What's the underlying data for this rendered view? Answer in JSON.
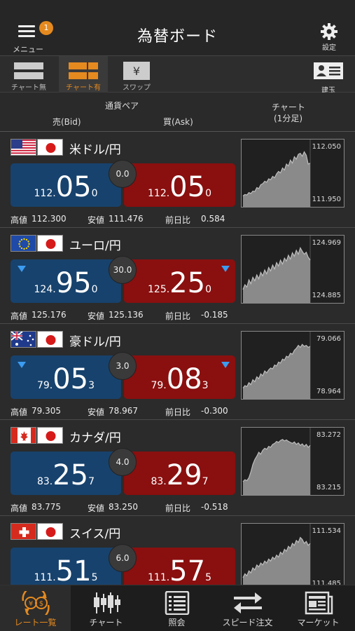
{
  "header": {
    "menu_label": "メニュー",
    "menu_badge": "1",
    "title": "為替ボード",
    "settings_label": "設定"
  },
  "view_modes": [
    {
      "label": "チャート無",
      "icon": "no-chart-list-icon",
      "active": false
    },
    {
      "label": "チャート有",
      "icon": "chart-grid-icon",
      "active": true
    },
    {
      "label": "スワップ",
      "icon": "yen-icon",
      "active": false
    }
  ],
  "position_label": "建玉",
  "columns": {
    "pair": "通貨ペア",
    "bid": "売(Bid)",
    "ask": "買(Ask)",
    "chart": "チャート",
    "chart_interval": "(1分足)"
  },
  "stat_labels": {
    "high": "高値",
    "low": "安値",
    "change": "前日比"
  },
  "colors": {
    "bid": "#17426d",
    "ask": "#8a0f0f",
    "accent": "#e58a1f",
    "down_arrow": "#3b9cf0"
  },
  "pairs": [
    {
      "name": "米ドル/円",
      "flags": [
        "us",
        "jp"
      ],
      "bid": {
        "pre": "112.",
        "big": "05",
        "small": "0"
      },
      "ask": {
        "pre": "112.",
        "big": "05",
        "small": "0"
      },
      "spread": "0.0",
      "bid_arrow": false,
      "ask_arrow": false,
      "high": "112.300",
      "low": "111.476",
      "change": "0.584",
      "chart_hi": "112.050",
      "chart_lo": "111.950",
      "series": [
        0.05,
        0.08,
        0.07,
        0.12,
        0.1,
        0.15,
        0.14,
        0.22,
        0.2,
        0.28,
        0.3,
        0.35,
        0.33,
        0.4,
        0.38,
        0.45,
        0.42,
        0.5,
        0.55,
        0.52,
        0.62,
        0.58,
        0.7,
        0.66,
        0.78,
        0.72,
        0.85,
        0.8,
        0.9,
        0.92,
        0.86,
        0.95,
        0.88,
        0.7,
        0.72
      ]
    },
    {
      "name": "ユーロ/円",
      "flags": [
        "eu",
        "jp"
      ],
      "bid": {
        "pre": "124.",
        "big": "95",
        "small": "0"
      },
      "ask": {
        "pre": "125.",
        "big": "25",
        "small": "0"
      },
      "spread": "30.0",
      "bid_arrow": true,
      "ask_arrow": true,
      "high": "125.176",
      "low": "125.136",
      "change": "-0.185",
      "chart_hi": "124.969",
      "chart_lo": "124.885",
      "series": [
        0.1,
        0.2,
        0.15,
        0.3,
        0.22,
        0.35,
        0.28,
        0.4,
        0.32,
        0.45,
        0.38,
        0.5,
        0.42,
        0.55,
        0.48,
        0.6,
        0.52,
        0.65,
        0.58,
        0.7,
        0.62,
        0.74,
        0.68,
        0.8,
        0.72,
        0.85,
        0.78,
        0.9,
        0.82,
        0.95,
        0.88,
        0.82,
        0.86,
        0.76,
        0.7
      ]
    },
    {
      "name": "豪ドル/円",
      "flags": [
        "au",
        "jp"
      ],
      "bid": {
        "pre": "79.",
        "big": "05",
        "small": "3"
      },
      "ask": {
        "pre": "79.",
        "big": "08",
        "small": "3"
      },
      "spread": "3.0",
      "bid_arrow": true,
      "ask_arrow": true,
      "high": "79.305",
      "low": "78.967",
      "change": "-0.300",
      "chart_hi": "79.066",
      "chart_lo": "78.964",
      "series": [
        0.05,
        0.1,
        0.08,
        0.16,
        0.12,
        0.22,
        0.18,
        0.28,
        0.24,
        0.34,
        0.3,
        0.4,
        0.36,
        0.42,
        0.46,
        0.44,
        0.52,
        0.5,
        0.58,
        0.56,
        0.64,
        0.62,
        0.7,
        0.68,
        0.76,
        0.74,
        0.82,
        0.86,
        0.92,
        0.88,
        0.94,
        0.9,
        0.92,
        0.88,
        0.9
      ]
    },
    {
      "name": "カナダ/円",
      "flags": [
        "ca",
        "jp"
      ],
      "bid": {
        "pre": "83.",
        "big": "25",
        "small": "7"
      },
      "ask": {
        "pre": "83.",
        "big": "29",
        "small": "7"
      },
      "spread": "4.0",
      "bid_arrow": false,
      "ask_arrow": false,
      "high": "83.775",
      "low": "83.250",
      "change": "-0.518",
      "chart_hi": "83.272",
      "chart_lo": "83.215",
      "series": [
        0.1,
        0.14,
        0.12,
        0.18,
        0.3,
        0.45,
        0.55,
        0.62,
        0.7,
        0.66,
        0.74,
        0.78,
        0.76,
        0.82,
        0.8,
        0.86,
        0.88,
        0.92,
        0.9,
        0.94,
        0.96,
        0.93,
        0.95,
        0.92,
        0.9,
        0.88,
        0.91,
        0.86,
        0.89,
        0.84,
        0.87,
        0.82,
        0.86,
        0.8,
        0.84
      ]
    },
    {
      "name": "スイス/円",
      "flags": [
        "ch",
        "jp"
      ],
      "bid": {
        "pre": "111.",
        "big": "51",
        "small": "5"
      },
      "ask": {
        "pre": "111.",
        "big": "57",
        "small": "5"
      },
      "spread": "6.0",
      "bid_arrow": false,
      "ask_arrow": false,
      "high": "",
      "low": "",
      "change": "",
      "chart_hi": "111.534",
      "chart_lo": "111.485",
      "series": [
        0.1,
        0.18,
        0.14,
        0.24,
        0.2,
        0.3,
        0.26,
        0.36,
        0.32,
        0.4,
        0.36,
        0.44,
        0.4,
        0.48,
        0.44,
        0.52,
        0.48,
        0.56,
        0.52,
        0.62,
        0.58,
        0.68,
        0.64,
        0.74,
        0.7,
        0.8,
        0.76,
        0.86,
        0.82,
        0.92,
        0.88,
        0.8,
        0.84,
        0.76,
        0.8
      ]
    }
  ],
  "nav": [
    {
      "label": "レート一覧",
      "icon": "currency-exchange-icon",
      "active": true
    },
    {
      "label": "チャート",
      "icon": "candlestick-icon",
      "active": false
    },
    {
      "label": "照会",
      "icon": "inquiry-list-icon",
      "active": false
    },
    {
      "label": "スピード注文",
      "icon": "speed-order-arrows-icon",
      "active": false
    },
    {
      "label": "マーケット",
      "icon": "newspaper-icon",
      "active": false
    }
  ]
}
